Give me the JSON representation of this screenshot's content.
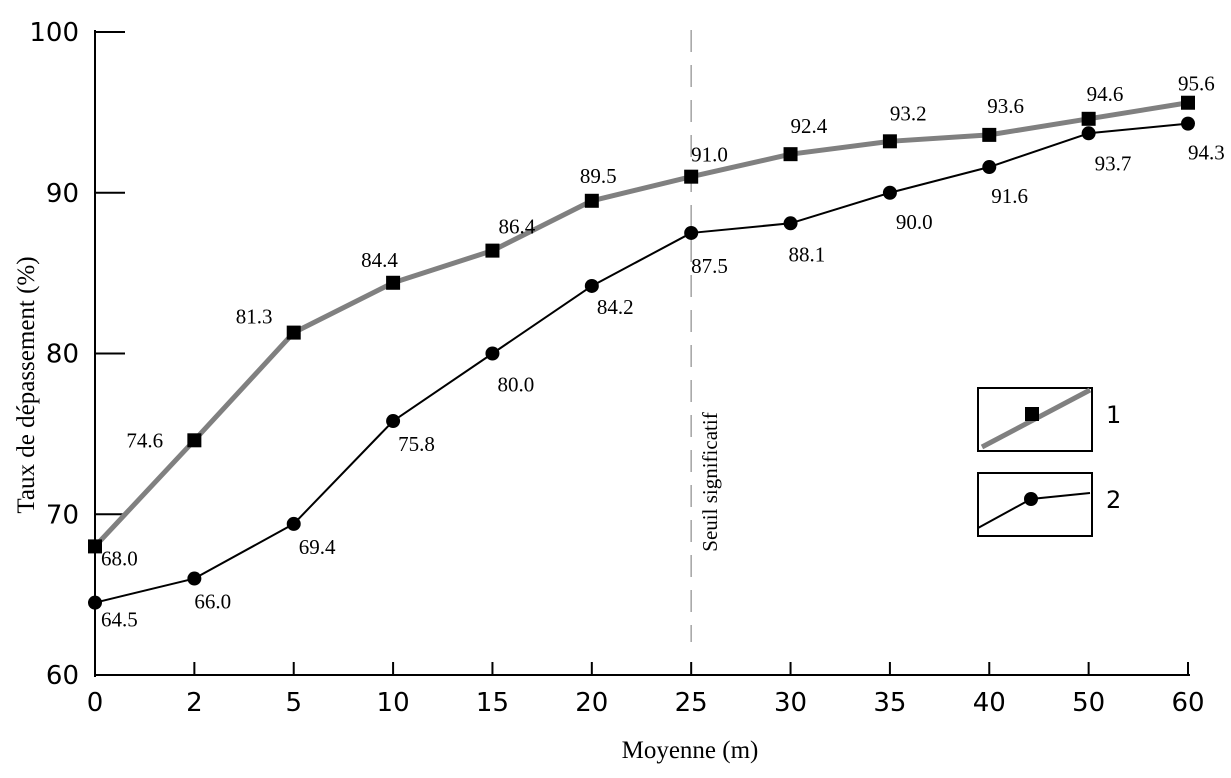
{
  "chart_data": {
    "type": "line",
    "categories": [
      "0",
      "2",
      "5",
      "10",
      "15",
      "20",
      "25",
      "30",
      "35",
      "40",
      "50",
      "60"
    ],
    "series": [
      {
        "name": "1",
        "color": "#808080",
        "marker": "square",
        "values": [
          68.0,
          74.6,
          81.3,
          84.4,
          86.4,
          89.5,
          91.0,
          92.4,
          93.2,
          93.6,
          94.6,
          95.6
        ]
      },
      {
        "name": "2",
        "color": "#000000",
        "marker": "circle",
        "values": [
          64.5,
          66.0,
          69.4,
          75.8,
          80.0,
          84.2,
          87.5,
          88.1,
          90.0,
          91.6,
          93.7,
          94.3
        ]
      }
    ],
    "xlabel": "Moyenne (m)",
    "ylabel": "Taux de dépassement (%)",
    "ylim": [
      60,
      100
    ],
    "yticks": [
      60,
      70,
      80,
      90,
      100
    ],
    "grid": false,
    "legend_position": "right",
    "annotation": {
      "text": "Seuil significatif",
      "at_category": "25",
      "style": "dashed"
    }
  }
}
